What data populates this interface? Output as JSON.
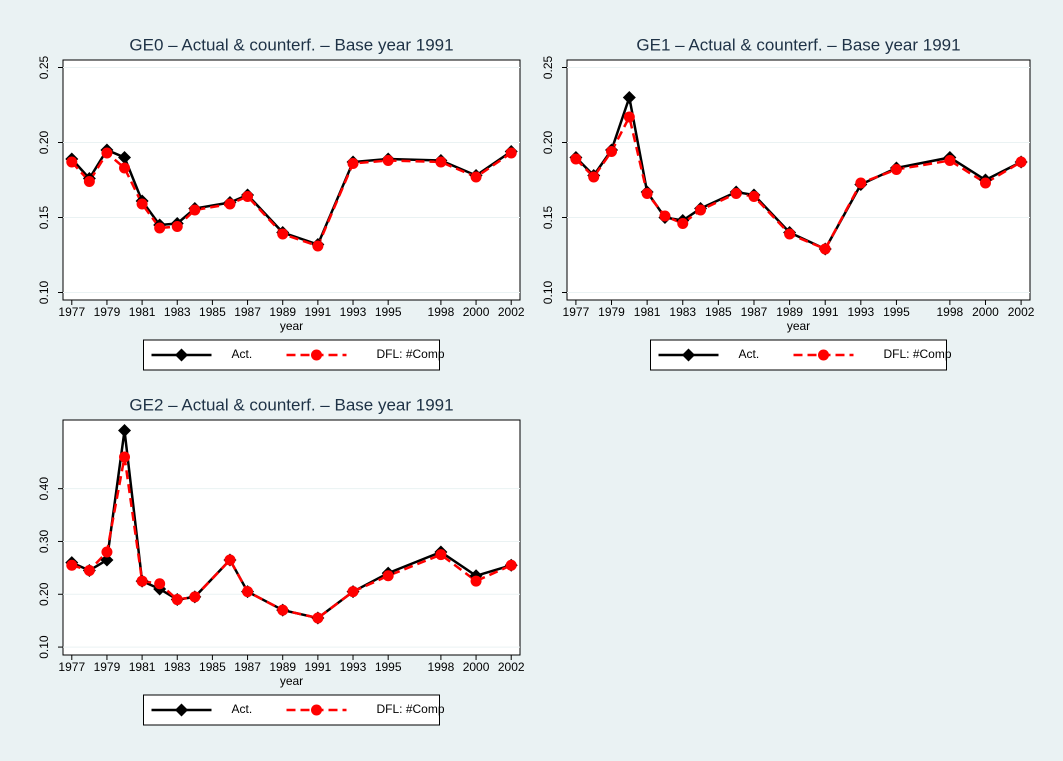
{
  "chart_data": [
    {
      "type": "line",
      "title": "GE0 – Actual & counterf. – Base year 1991",
      "xlabel": "year",
      "x": [
        1977,
        1978,
        1979,
        1980,
        1981,
        1982,
        1983,
        1984,
        1986,
        1987,
        1989,
        1991,
        1993,
        1995,
        1998,
        2000,
        2002
      ],
      "xlim": [
        1976.5,
        2002.5
      ],
      "xticks": [
        1977,
        1979,
        1981,
        1983,
        1985,
        1987,
        1989,
        1991,
        1993,
        1995,
        1998,
        2000,
        2002
      ],
      "ylim": [
        0.095,
        0.255
      ],
      "yticks": [
        {
          "value": 0.1,
          "label": "0.10"
        },
        {
          "value": 0.15,
          "label": "0.15"
        },
        {
          "value": 0.2,
          "label": "0.20"
        },
        {
          "value": 0.25,
          "label": "0.25"
        }
      ],
      "grid": true,
      "series": [
        {
          "name": "Act.",
          "color": "#000000",
          "marker": "diamond",
          "dashed": false,
          "values": [
            0.189,
            0.176,
            0.195,
            0.19,
            0.161,
            0.145,
            0.146,
            0.156,
            0.16,
            0.165,
            0.14,
            0.132,
            0.187,
            0.189,
            0.188,
            0.178,
            0.194
          ]
        },
        {
          "name": "DFL: #Comp",
          "color": "#ff0000",
          "marker": "circle",
          "dashed": true,
          "values": [
            0.187,
            0.174,
            0.193,
            0.183,
            0.159,
            0.143,
            0.144,
            0.155,
            0.159,
            0.164,
            0.139,
            0.131,
            0.186,
            0.188,
            0.187,
            0.177,
            0.193
          ]
        }
      ]
    },
    {
      "type": "line",
      "title": "GE1 – Actual & counterf. – Base year 1991",
      "xlabel": "year",
      "x": [
        1977,
        1978,
        1979,
        1980,
        1981,
        1982,
        1983,
        1984,
        1986,
        1987,
        1989,
        1991,
        1993,
        1995,
        1998,
        2000,
        2002
      ],
      "xlim": [
        1976.5,
        2002.5
      ],
      "xticks": [
        1977,
        1979,
        1981,
        1983,
        1985,
        1987,
        1989,
        1991,
        1993,
        1995,
        1998,
        2000,
        2002
      ],
      "ylim": [
        0.095,
        0.255
      ],
      "yticks": [
        {
          "value": 0.1,
          "label": "0.10"
        },
        {
          "value": 0.15,
          "label": "0.15"
        },
        {
          "value": 0.2,
          "label": "0.20"
        },
        {
          "value": 0.25,
          "label": "0.25"
        }
      ],
      "grid": true,
      "series": [
        {
          "name": "Act.",
          "color": "#000000",
          "marker": "diamond",
          "dashed": false,
          "values": [
            0.19,
            0.178,
            0.195,
            0.23,
            0.167,
            0.15,
            0.148,
            0.156,
            0.167,
            0.165,
            0.14,
            0.129,
            0.172,
            0.183,
            0.19,
            0.175,
            0.187
          ]
        },
        {
          "name": "DFL: #Comp",
          "color": "#ff0000",
          "marker": "circle",
          "dashed": true,
          "values": [
            0.189,
            0.177,
            0.194,
            0.217,
            0.166,
            0.151,
            0.146,
            0.155,
            0.166,
            0.164,
            0.139,
            0.129,
            0.173,
            0.182,
            0.188,
            0.173,
            0.187
          ]
        }
      ]
    },
    {
      "type": "line",
      "title": "GE2 – Actual & counterf. – Base year 1991",
      "xlabel": "year",
      "x": [
        1977,
        1978,
        1979,
        1980,
        1981,
        1982,
        1983,
        1984,
        1986,
        1987,
        1989,
        1991,
        1993,
        1995,
        1998,
        2000,
        2002
      ],
      "xlim": [
        1976.5,
        2002.5
      ],
      "xticks": [
        1977,
        1979,
        1981,
        1983,
        1985,
        1987,
        1989,
        1991,
        1993,
        1995,
        1998,
        2000,
        2002
      ],
      "ylim": [
        0.085,
        0.53
      ],
      "yticks": [
        {
          "value": 0.1,
          "label": "0.10"
        },
        {
          "value": 0.2,
          "label": "0.20"
        },
        {
          "value": 0.3,
          "label": "0.30"
        },
        {
          "value": 0.4,
          "label": "0.40"
        }
      ],
      "grid": true,
      "series": [
        {
          "name": "Act.",
          "color": "#000000",
          "marker": "diamond",
          "dashed": false,
          "values": [
            0.26,
            0.245,
            0.265,
            0.51,
            0.225,
            0.21,
            0.19,
            0.195,
            0.265,
            0.205,
            0.17,
            0.155,
            0.205,
            0.24,
            0.28,
            0.235,
            0.255
          ]
        },
        {
          "name": "DFL: #Comp",
          "color": "#ff0000",
          "marker": "circle",
          "dashed": true,
          "values": [
            0.255,
            0.245,
            0.28,
            0.46,
            0.225,
            0.22,
            0.19,
            0.195,
            0.265,
            0.205,
            0.17,
            0.155,
            0.205,
            0.235,
            0.275,
            0.225,
            0.255
          ]
        }
      ]
    }
  ]
}
